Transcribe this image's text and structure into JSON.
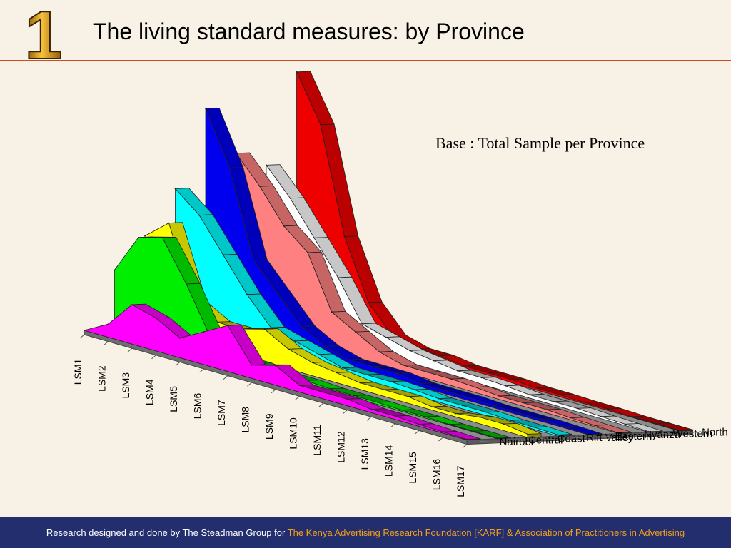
{
  "slide": {
    "number": "1",
    "title": "The living standard measures: by Province",
    "base_note": "Base : Total Sample per Province"
  },
  "footer": {
    "text": "Research designed and done by The Steadman Group for ",
    "highlight": "The Kenya Advertising Research Foundation [KARF] & Association of Practitioners in Advertising"
  },
  "colors": {
    "title_rule": "#cc4b1f",
    "footer_bg": "#232e6e",
    "footer_highlight": "#f3a01a",
    "background": "#f8f1e5"
  },
  "chart_data": {
    "type": "area",
    "style": "3d-ribbon",
    "categories": [
      "LSM1",
      "LSM2",
      "LSM3",
      "LSM4",
      "LSM5",
      "LSM6",
      "LSM7",
      "LSM8",
      "LSM9",
      "LSM10",
      "LSM11",
      "LSM12",
      "LSM13",
      "LSM14",
      "LSM15",
      "LSM16",
      "LSM17"
    ],
    "series": [
      {
        "name": "Nairobi",
        "color": "#ff00ff",
        "values": [
          0,
          2,
          6,
          5,
          3,
          5,
          7,
          2,
          3,
          1,
          1,
          1,
          0.5,
          0.5,
          0.3,
          0.2,
          0.1
        ]
      },
      {
        "name": "Central",
        "color": "#00ee00",
        "values": [
          9,
          15,
          16,
          10,
          3,
          1,
          1,
          0.5,
          0.5,
          0.3,
          0.3,
          0.3,
          0.2,
          0.2,
          0.1,
          0.1,
          0.1
        ]
      },
      {
        "name": "Coast",
        "color": "#ffff00",
        "values": [
          14,
          17,
          6,
          4,
          4,
          5,
          3,
          2,
          1.5,
          1,
          1,
          1,
          0.5,
          0.5,
          1,
          1,
          0.5
        ]
      },
      {
        "name": "Rift Valley",
        "color": "#00ffff",
        "values": [
          21,
          18,
          13,
          8,
          4,
          3,
          2,
          1,
          1,
          1,
          0.8,
          0.5,
          0.5,
          0.5,
          0.3,
          0.3,
          0.2
        ]
      },
      {
        "name": "Eastern",
        "color": "#0000ee",
        "values": [
          33,
          25,
          12,
          8,
          4,
          2,
          1,
          1,
          1,
          0.5,
          0.5,
          0.5,
          0.3,
          0.3,
          0.3,
          0.2,
          0.1
        ]
      },
      {
        "name": "Nyanza",
        "color": "#ff8080",
        "values": [
          26,
          22,
          17,
          14,
          6,
          4,
          2,
          1,
          1,
          1,
          0.8,
          0.5,
          0.5,
          0.5,
          0.3,
          0.2,
          0.1
        ]
      },
      {
        "name": "Western",
        "color": "#ffffff",
        "values": [
          24,
          20,
          15,
          10,
          4,
          3,
          2,
          1.5,
          1,
          1,
          0.8,
          0.5,
          0.5,
          0.5,
          0.3,
          0.2,
          0.1
        ]
      },
      {
        "name": "North Eastern",
        "color": "#ee0000",
        "values": [
          38,
          31,
          15,
          6,
          2,
          1,
          1,
          0.5,
          0.5,
          0.5,
          0.3,
          0.3,
          0.2,
          0.2,
          0.1,
          0.1,
          0.1
        ]
      }
    ],
    "xlabel": "",
    "ylabel": "",
    "grid": false,
    "legend": "right, one label per series row"
  }
}
